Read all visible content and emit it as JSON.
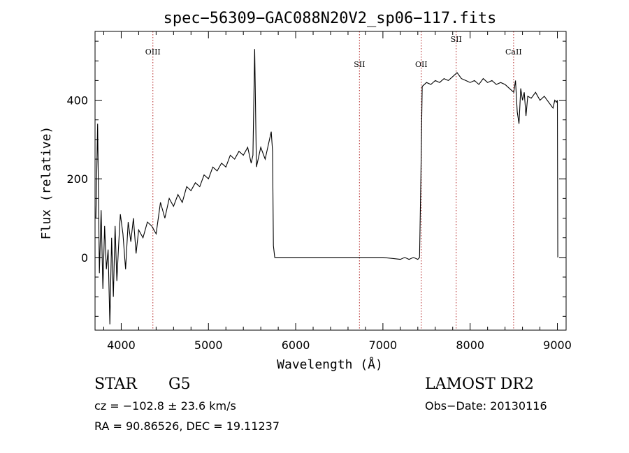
{
  "chart_data": {
    "type": "line",
    "title": "spec−56309−GAC088N20V2_sp06−117.fits",
    "xlabel": "Wavelength (Å)",
    "ylabel": "Flux (relative)",
    "xlim": [
      3700,
      9100
    ],
    "ylim": [
      -185,
      575
    ],
    "xticks": [
      4000,
      5000,
      6000,
      7000,
      8000,
      9000
    ],
    "yticks": [
      0,
      200,
      400
    ],
    "grid": false,
    "lines": [
      {
        "label": "OIII",
        "x": 4363
      },
      {
        "label": "SII",
        "x": 6731
      },
      {
        "label": "OII",
        "x": 7440
      },
      {
        "label": "SII",
        "x": 7840
      },
      {
        "label": "CaII",
        "x": 8498
      }
    ],
    "series": [
      {
        "x": [
          3710,
          3730,
          3750,
          3770,
          3790,
          3810,
          3830,
          3850,
          3870,
          3890,
          3910,
          3930,
          3950,
          3970,
          3990,
          4020,
          4050,
          4080,
          4110,
          4140,
          4170,
          4200,
          4250,
          4300,
          4350,
          4400,
          4450,
          4500,
          4550,
          4600,
          4650,
          4700,
          4750,
          4800,
          4850,
          4900,
          4950,
          5000,
          5050,
          5100,
          5150,
          5200,
          5250,
          5300,
          5350,
          5400,
          5450,
          5490,
          5510,
          5530,
          5550,
          5600,
          5650,
          5700,
          5720,
          5735,
          5745,
          5760,
          5800,
          6000,
          6500,
          7000,
          7200,
          7250,
          7300,
          7350,
          7400,
          7420,
          7435,
          7450,
          7500,
          7550,
          7600,
          7650,
          7700,
          7750,
          7800,
          7850,
          7900,
          7950,
          8000,
          8050,
          8100,
          8150,
          8200,
          8250,
          8300,
          8350,
          8400,
          8450,
          8500,
          8520,
          8540,
          8560,
          8580,
          8600,
          8620,
          8640,
          8660,
          8700,
          8750,
          8800,
          8850,
          8900,
          8950,
          8970,
          8990,
          9000,
          9005
        ],
        "y": [
          100,
          340,
          -40,
          120,
          -80,
          80,
          -30,
          20,
          -170,
          50,
          -100,
          80,
          -60,
          30,
          110,
          60,
          -30,
          90,
          40,
          100,
          10,
          70,
          50,
          90,
          80,
          60,
          140,
          100,
          150,
          130,
          160,
          140,
          180,
          170,
          190,
          180,
          210,
          200,
          230,
          220,
          240,
          230,
          260,
          250,
          270,
          260,
          280,
          240,
          260,
          530,
          230,
          280,
          250,
          300,
          320,
          270,
          30,
          0,
          0,
          0,
          0,
          0,
          -5,
          0,
          -5,
          0,
          -5,
          0,
          200,
          435,
          445,
          440,
          450,
          445,
          455,
          450,
          460,
          470,
          455,
          450,
          445,
          450,
          440,
          455,
          445,
          450,
          440,
          445,
          440,
          430,
          420,
          450,
          370,
          340,
          430,
          400,
          420,
          360,
          410,
          405,
          420,
          400,
          410,
          395,
          380,
          400,
          395,
          400,
          0
        ]
      }
    ],
    "annotations": {
      "star_type": "STAR",
      "subclass": "G5",
      "survey": "LAMOST DR2",
      "cz": "cz = −102.8 ± 23.6 km/s",
      "obs_date": "Obs−Date: 20130116",
      "radec": "RA =  90.86526, DEC =  19.11237"
    }
  }
}
